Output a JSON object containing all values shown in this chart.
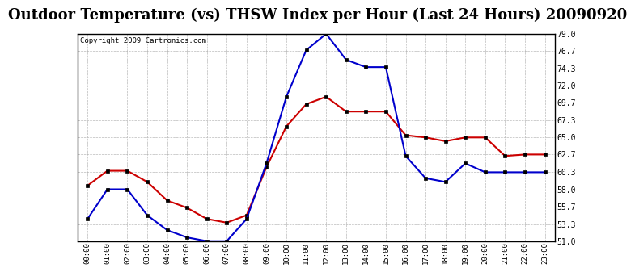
{
  "title": "Outdoor Temperature (vs) THSW Index per Hour (Last 24 Hours) 20090920",
  "copyright": "Copyright 2009 Cartronics.com",
  "hours": [
    "00:00",
    "01:00",
    "02:00",
    "03:00",
    "04:00",
    "05:00",
    "06:00",
    "07:00",
    "08:00",
    "09:00",
    "10:00",
    "11:00",
    "12:00",
    "13:00",
    "14:00",
    "15:00",
    "16:00",
    "17:00",
    "18:00",
    "19:00",
    "20:00",
    "21:00",
    "22:00",
    "23:00"
  ],
  "temp_red": [
    58.5,
    60.5,
    60.5,
    59.0,
    56.5,
    55.5,
    54.0,
    53.5,
    54.5,
    61.0,
    66.5,
    69.5,
    70.5,
    68.5,
    68.5,
    68.5,
    65.3,
    65.0,
    64.5,
    65.0,
    65.0,
    62.5,
    62.7,
    62.7
  ],
  "thsw_blue": [
    54.0,
    58.0,
    58.0,
    54.5,
    52.5,
    51.5,
    51.0,
    51.0,
    54.0,
    61.5,
    70.5,
    76.8,
    79.0,
    75.5,
    74.5,
    74.5,
    62.5,
    59.5,
    59.0,
    61.5,
    60.3,
    60.3,
    60.3,
    60.3
  ],
  "ylim": [
    51.0,
    79.0
  ],
  "yticks": [
    51.0,
    53.3,
    55.7,
    58.0,
    60.3,
    62.7,
    65.0,
    67.3,
    69.7,
    72.0,
    74.3,
    76.7,
    79.0
  ],
  "bg_color": "#ffffff",
  "grid_color": "#aaaaaa",
  "plot_bg": "#ffffff",
  "red_color": "#cc0000",
  "blue_color": "#0000cc",
  "title_fontsize": 13,
  "copyright_fontsize": 6.5
}
